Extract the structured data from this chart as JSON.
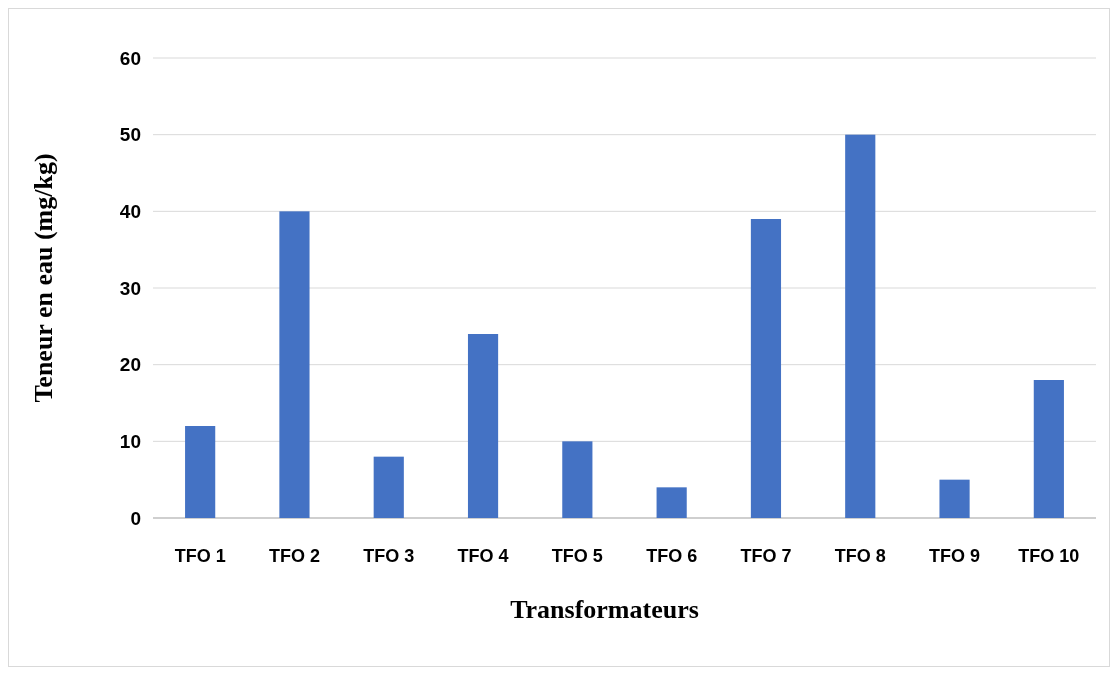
{
  "chart_data": {
    "type": "bar",
    "xlabel": "Transformateurs",
    "ylabel": "Teneur en eau (mg/kg)",
    "categories": [
      "TFO 1",
      "TFO 2",
      "TFO 3",
      "TFO 4",
      "TFO 5",
      "TFO 6",
      "TFO 7",
      "TFO 8",
      "TFO 9",
      "TFO 10"
    ],
    "values": [
      12,
      40,
      8,
      24,
      10,
      4,
      39,
      50,
      5,
      18
    ],
    "color": "#4472c4",
    "ylim": [
      0,
      60
    ],
    "yticks": [
      0,
      10,
      20,
      30,
      40,
      50,
      60
    ],
    "grid": "y"
  }
}
